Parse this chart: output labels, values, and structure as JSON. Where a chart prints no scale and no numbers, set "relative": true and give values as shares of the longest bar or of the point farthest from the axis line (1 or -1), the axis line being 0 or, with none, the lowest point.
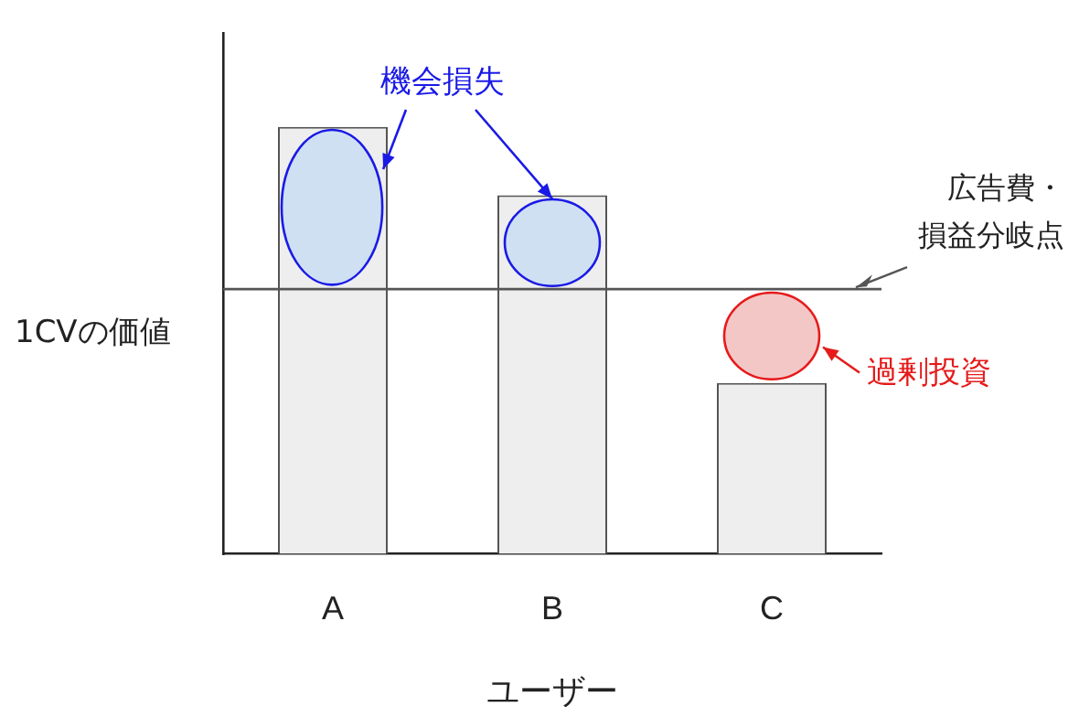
{
  "chart_data": {
    "type": "bar",
    "relative": true,
    "categories": [
      "A",
      "B",
      "C"
    ],
    "values": [
      1,
      0.84,
      0.4
    ],
    "color": "#eeeeee",
    "xlabel": "ユーザー",
    "ylabel": "1CVの価値",
    "grid": false,
    "ref_lines": [
      {
        "axis": "y",
        "value": 0.62,
        "label": "広告費・損益分岐点",
        "color": "#555555"
      }
    ],
    "annotations": [
      "機会損失",
      "過剰投資"
    ]
  }
}
